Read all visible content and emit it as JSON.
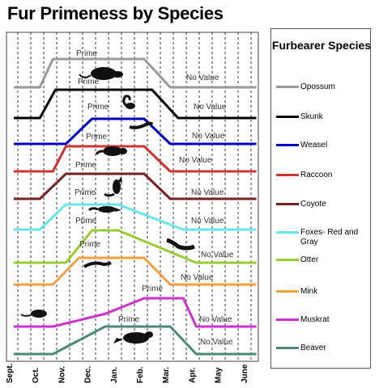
{
  "title": "Fur Primeness by Species",
  "legend_title": "Furbearer Species",
  "prime_label": "Prime",
  "no_value_label": "No Value",
  "chart_data": {
    "type": "line",
    "title": "Fur Primeness by Species",
    "x_tick_labels": [
      "Sept.",
      "Oct.",
      "Nov.",
      "Dec.",
      "Jan.",
      "Feb.",
      "Mar.",
      "Apr.",
      "May",
      "June"
    ],
    "xlim": [
      "Sept.",
      "June"
    ],
    "value_meaning": "fur value level (0 = No Value, 1 = Prime)",
    "ylim": [
      0,
      1
    ],
    "grid": "vertical dashed lines",
    "legend_position": "right",
    "series": [
      {
        "name": "Opossum",
        "color": "#999999",
        "x": [
          0,
          1.0,
          1.5,
          5.0,
          6.0,
          9.3
        ],
        "y": [
          0,
          0,
          1,
          1,
          0,
          0
        ]
      },
      {
        "name": "Skunk",
        "color": "#000000",
        "x": [
          0,
          1.0,
          1.6,
          5.3,
          6.3,
          9.3
        ],
        "y": [
          0,
          0,
          1,
          1,
          0,
          0
        ]
      },
      {
        "name": "Weasel",
        "color": "#0000bb",
        "x": [
          0,
          2.0,
          3.0,
          5.0,
          6.0,
          9.3
        ],
        "y": [
          0,
          0,
          1,
          1,
          0,
          0
        ]
      },
      {
        "name": "Raccoon",
        "color": "#cc3333",
        "x": [
          0,
          1.5,
          2.0,
          5.0,
          6.0,
          9.3
        ],
        "y": [
          0,
          0,
          1,
          1,
          0,
          0
        ]
      },
      {
        "name": "Coyote",
        "color": "#772222",
        "x": [
          0,
          1.0,
          2.0,
          5.0,
          6.0,
          9.3
        ],
        "y": [
          0,
          0,
          1,
          1,
          0,
          0
        ]
      },
      {
        "name": "Foxes- Red and Gray",
        "color": "#66e6ea",
        "x": [
          0,
          1.0,
          2.0,
          4.0,
          6.5,
          9.3
        ],
        "y": [
          0,
          0,
          1,
          1,
          0,
          0
        ]
      },
      {
        "name": "Otter",
        "color": "#99cc33",
        "x": [
          0,
          2.0,
          3.0,
          4.0,
          7.0,
          9.3
        ],
        "y": [
          0,
          0,
          1,
          1,
          0,
          0
        ]
      },
      {
        "name": "Mink",
        "color": "#f0a040",
        "x": [
          0,
          1.5,
          2.5,
          5.0,
          6.0,
          9.3
        ],
        "y": [
          0,
          0,
          1,
          1,
          0,
          0
        ]
      },
      {
        "name": "Muskrat",
        "color": "#cc33cc",
        "x": [
          0,
          1.5,
          3.5,
          5.0,
          6.5,
          7.0,
          9.3
        ],
        "y": [
          0,
          0,
          0.45,
          1,
          1,
          0,
          0
        ]
      },
      {
        "name": "Beaver",
        "color": "#4a8a7a",
        "x": [
          0,
          1.5,
          3.5,
          6.0,
          7.0,
          9.3
        ],
        "y": [
          0,
          0,
          1,
          1,
          0,
          0
        ]
      }
    ]
  }
}
